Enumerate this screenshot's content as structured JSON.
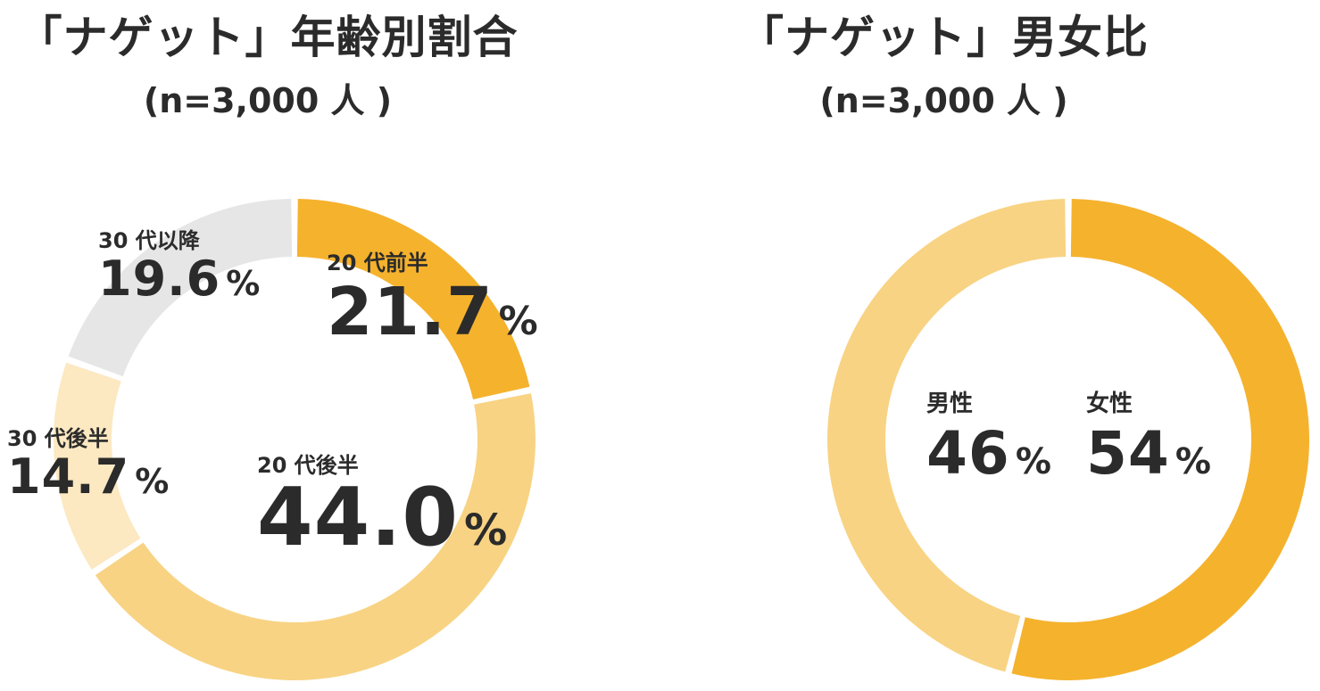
{
  "colors": {
    "dark_orange": "#F5B22D",
    "light_orange": "#F8D383",
    "pale_orange": "#FCE8C1",
    "gray": "#E6E6E6",
    "text": "#2B2B2B"
  },
  "left": {
    "title": "「ナゲット」年齢別割合",
    "subtitle": "(n=3,000 人 )",
    "percent_sign": "%"
  },
  "right": {
    "title": "「ナゲット」男女比",
    "subtitle": "(n=3,000 人 )",
    "percent_sign": "%"
  },
  "chart_data": [
    {
      "type": "pie",
      "donut": true,
      "title": "「ナゲット」年齢別割合",
      "subtitle": "(n=3,000 人 )",
      "categories": [
        "20 代前半",
        "20 代後半",
        "30 代後半",
        "30 代以降"
      ],
      "values": [
        21.7,
        44.0,
        14.7,
        19.6
      ],
      "value_labels": [
        "21.7",
        "44.0",
        "14.7",
        "19.6"
      ],
      "colors": [
        "#F5B22D",
        "#F8D383",
        "#FCE8C1",
        "#E6E6E6"
      ],
      "start": "12 o'clock",
      "direction": "clockwise"
    },
    {
      "type": "pie",
      "donut": true,
      "title": "「ナゲット」男女比",
      "subtitle": "(n=3,000 人 )",
      "categories": [
        "女性",
        "男性"
      ],
      "values": [
        54,
        46
      ],
      "value_labels": [
        "54",
        "46"
      ],
      "colors": [
        "#F5B22D",
        "#F8D383"
      ],
      "start": "12 o'clock",
      "direction": "clockwise"
    }
  ]
}
